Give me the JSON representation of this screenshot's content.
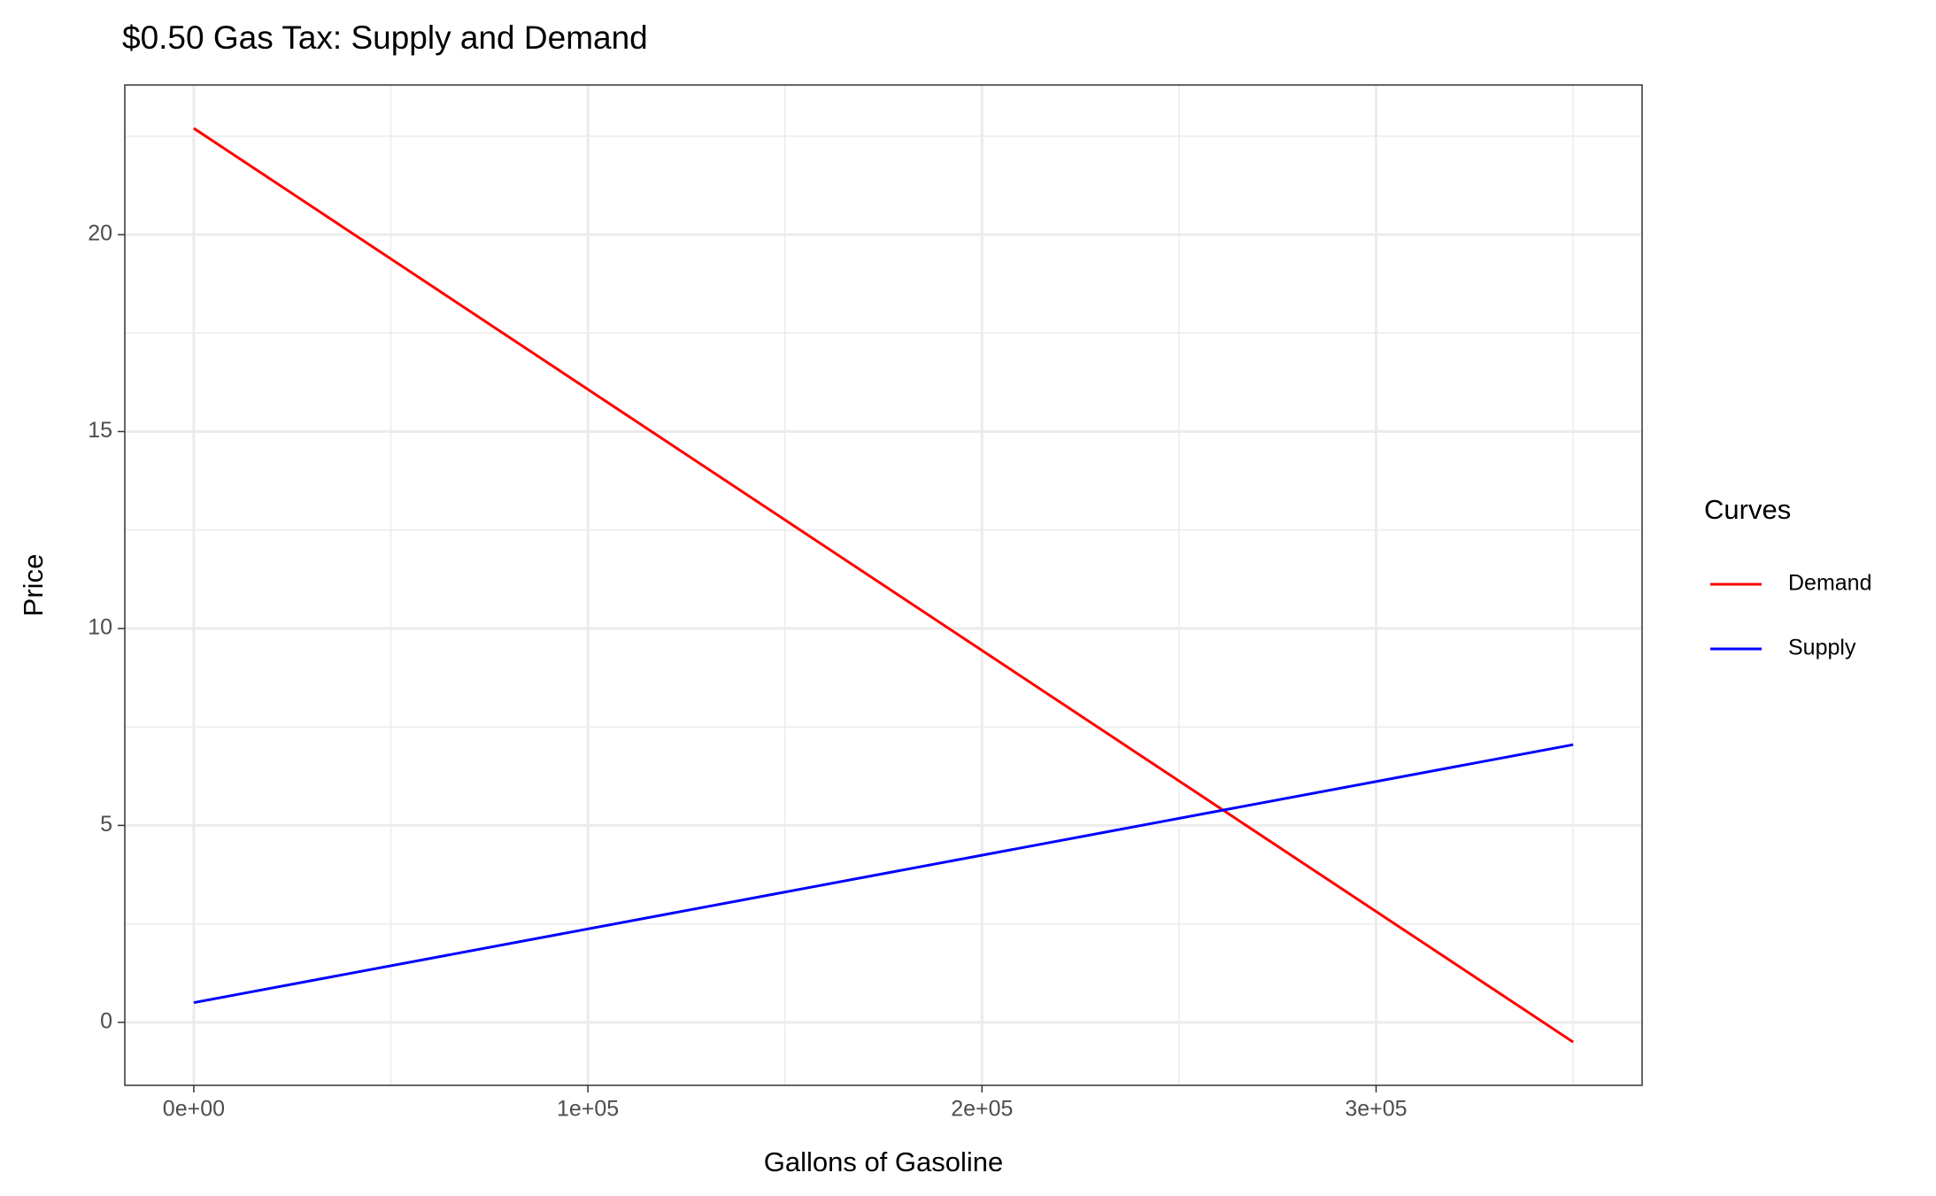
{
  "chart_data": {
    "type": "line",
    "title": "$0.50 Gas Tax: Supply and Demand",
    "x_label": "Gallons of Gasoline",
    "y_label": "Price",
    "legend_title": "Curves",
    "legend": "right",
    "x": [
      0,
      350000
    ],
    "series": [
      {
        "name": "Demand",
        "color": "#ff0000",
        "values": [
          22.7,
          -0.5
        ]
      },
      {
        "name": "Supply",
        "color": "#0000ff",
        "values": [
          0.5,
          7.05
        ]
      }
    ],
    "xlim": [
      -17500,
      367500
    ],
    "ylim": [
      -1.6,
      23.8
    ],
    "xticks": [
      {
        "value": 0,
        "label": "0e+00"
      },
      {
        "value": 100000,
        "label": "1e+05"
      },
      {
        "value": 200000,
        "label": "2e+05"
      },
      {
        "value": 300000,
        "label": "3e+05"
      }
    ],
    "yticks": [
      0,
      5,
      10,
      15,
      20
    ],
    "x_minor_ticks": [
      50000,
      150000,
      250000,
      350000
    ],
    "y_minor_ticks": [
      2.5,
      7.5,
      12.5,
      17.5,
      22.5
    ],
    "grid": true
  }
}
